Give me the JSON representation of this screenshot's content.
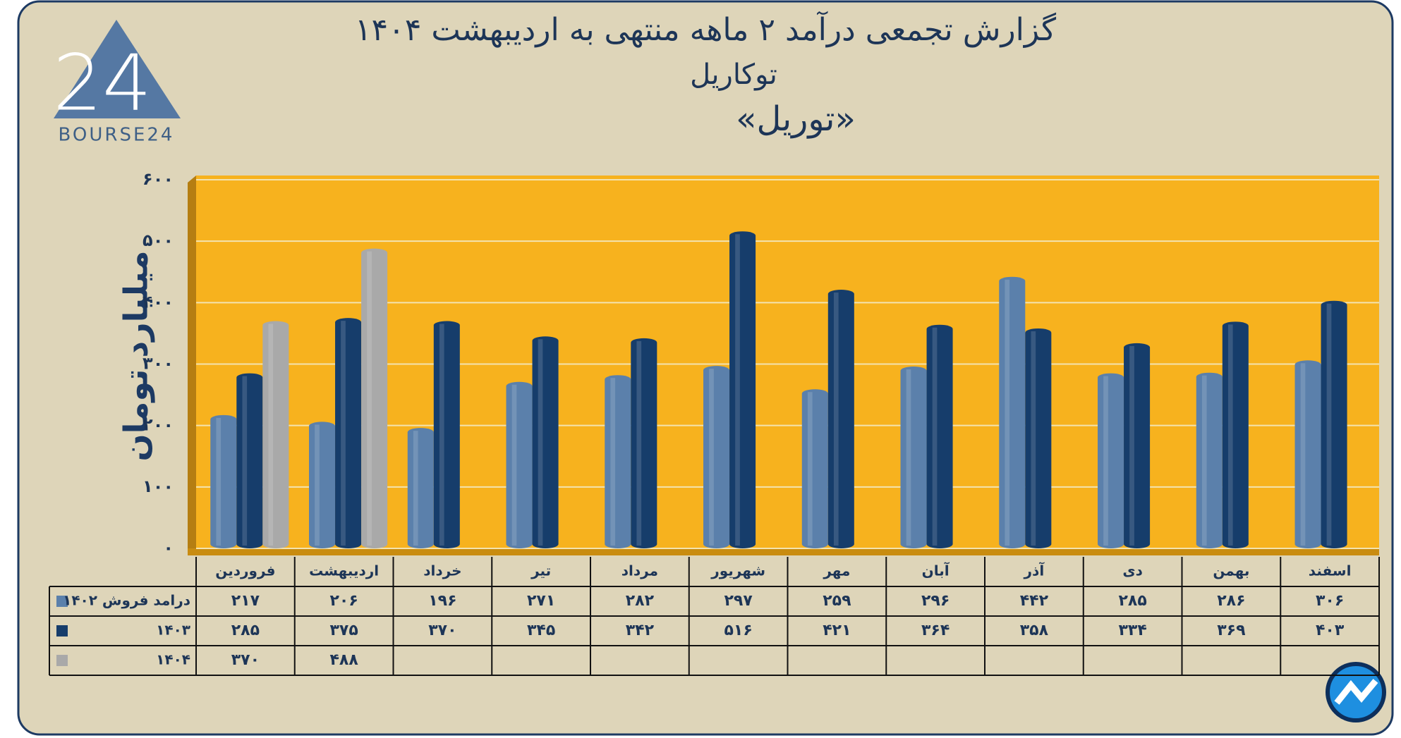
{
  "logo_text": "BOURSE24",
  "chart_data": {
    "type": "bar",
    "title": "گزارش تجمعی درآمد ۲ ماهه منتهی به اردیبهشت ۱۴۰۴",
    "subtitle": "توکاریل",
    "symbol": "«توریل»",
    "ylabel": "میلیارد تومان",
    "categories": [
      "فروردین",
      "اردیبهشت",
      "خرداد",
      "تیر",
      "مرداد",
      "شهریور",
      "مهر",
      "آبان",
      "آذر",
      "دی",
      "بهمن",
      "اسفند"
    ],
    "series": [
      {
        "name": "درامد فروش ۱۴۰۲",
        "color": "#5b80ab",
        "values": [
          217,
          206,
          196,
          271,
          282,
          297,
          259,
          296,
          442,
          285,
          286,
          306
        ],
        "value_labels": [
          "۲۱۷",
          "۲۰۶",
          "۱۹۶",
          "۲۷۱",
          "۲۸۲",
          "۲۹۷",
          "۲۵۹",
          "۲۹۶",
          "۴۴۲",
          "۲۸۵",
          "۲۸۶",
          "۳۰۶"
        ]
      },
      {
        "name": "۱۴۰۳",
        "color": "#163d6b",
        "values": [
          285,
          375,
          370,
          345,
          342,
          516,
          421,
          364,
          358,
          334,
          369,
          403
        ],
        "value_labels": [
          "۲۸۵",
          "۳۷۵",
          "۳۷۰",
          "۳۴۵",
          "۳۴۲",
          "۵۱۶",
          "۴۲۱",
          "۳۶۴",
          "۳۵۸",
          "۳۳۴",
          "۳۶۹",
          "۴۰۳"
        ]
      },
      {
        "name": "۱۴۰۴",
        "color": "#a9a9a9",
        "values": [
          370,
          488,
          null,
          null,
          null,
          null,
          null,
          null,
          null,
          null,
          null,
          null
        ],
        "value_labels": [
          "۳۷۰",
          "۴۸۸",
          null,
          null,
          null,
          null,
          null,
          null,
          null,
          null,
          null,
          null
        ]
      }
    ],
    "ylim": [
      0,
      600
    ],
    "yticks": [
      {
        "value": 0,
        "label": "۰"
      },
      {
        "value": 100,
        "label": "۱۰۰"
      },
      {
        "value": 200,
        "label": "۲۰۰"
      },
      {
        "value": 300,
        "label": "۳۰۰"
      },
      {
        "value": 400,
        "label": "۴۰۰"
      },
      {
        "value": 500,
        "label": "۵۰۰"
      },
      {
        "value": 600,
        "label": "۶۰۰"
      }
    ],
    "grid": true,
    "plot_background": "#f7b21e"
  }
}
